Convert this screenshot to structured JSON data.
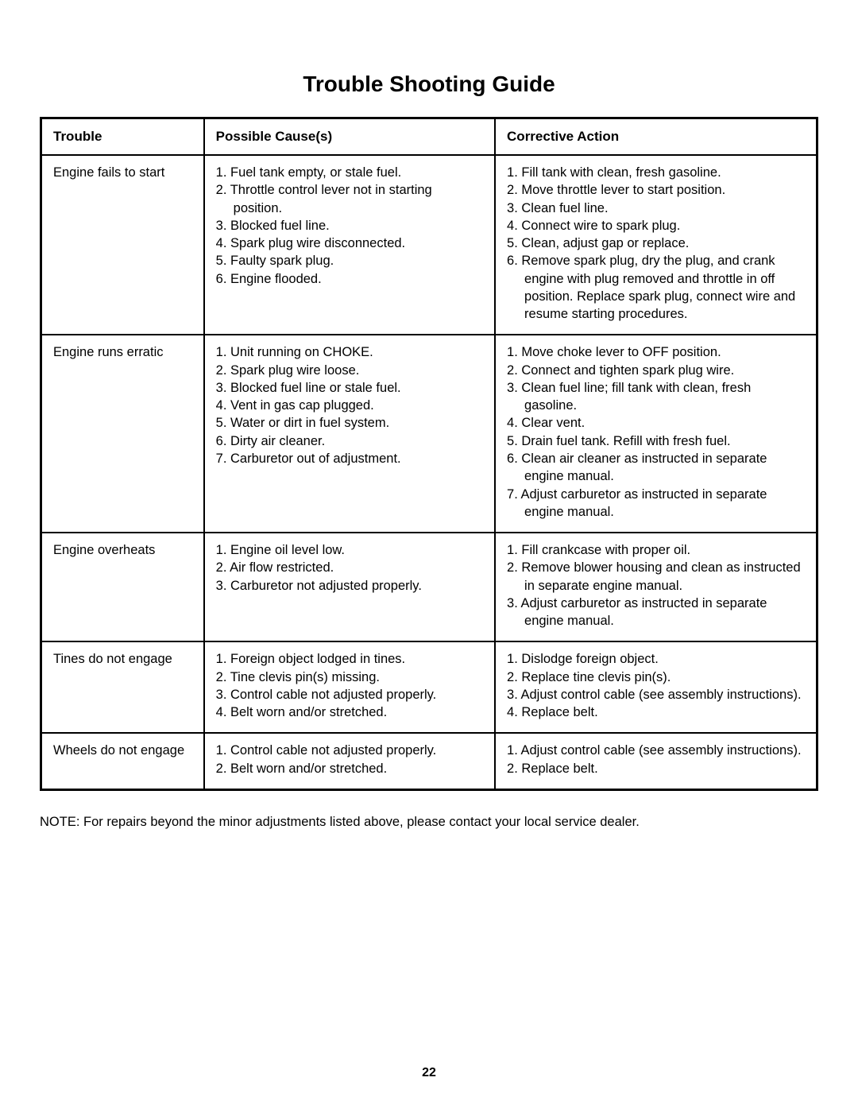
{
  "title": "Trouble Shooting Guide",
  "headers": {
    "trouble": "Trouble",
    "cause": "Possible Cause(s)",
    "action": "Corrective Action"
  },
  "rows": [
    {
      "trouble": "Engine fails to start",
      "causes": [
        "1.  Fuel tank empty, or stale fuel.",
        "2.  Throttle control lever not in starting position.",
        "3.  Blocked fuel line.",
        "4.  Spark plug wire disconnected.",
        "5.  Faulty spark plug.",
        "6.  Engine flooded."
      ],
      "actions": [
        "1.  Fill tank with clean, fresh gasoline.",
        "2.  Move throttle lever to start position.",
        "3.  Clean fuel line.",
        "4.  Connect wire to spark plug.",
        "5.  Clean, adjust gap or replace.",
        "6.  Remove spark plug, dry the plug, and crank engine with plug removed and throttle in off position. Replace spark plug, connect wire and resume starting procedures."
      ]
    },
    {
      "trouble": "Engine runs erratic",
      "causes": [
        "1.  Unit running on CHOKE.",
        "2.  Spark plug wire loose.",
        "3.  Blocked fuel line or stale fuel.",
        "4.  Vent in gas cap plugged.",
        "5.  Water or dirt in fuel system.",
        "6.  Dirty air cleaner.",
        "7.  Carburetor out of adjustment."
      ],
      "actions": [
        "1.  Move choke lever to OFF position.",
        "2.  Connect and tighten spark plug wire.",
        "3.  Clean fuel line; fill tank with clean, fresh gasoline.",
        "4.  Clear vent.",
        "5.  Drain fuel tank. Refill with fresh fuel.",
        "6.  Clean air cleaner as instructed in separate engine manual.",
        "7.  Adjust carburetor as instructed in separate engine manual."
      ]
    },
    {
      "trouble": "Engine overheats",
      "causes": [
        "1.  Engine oil level low.",
        "2.  Air flow restricted.",
        "3.  Carburetor not adjusted properly."
      ],
      "actions": [
        "1.  Fill crankcase with proper oil.",
        "2.  Remove blower housing and clean as instructed in separate engine manual.",
        "3.  Adjust carburetor as instructed in separate engine manual."
      ]
    },
    {
      "trouble": "Tines do not engage",
      "causes": [
        "1.  Foreign object lodged in tines.",
        "2.  Tine clevis pin(s) missing.",
        "3.  Control cable not adjusted properly.",
        "4.  Belt worn and/or stretched."
      ],
      "actions": [
        "1.  Dislodge foreign object.",
        "2.  Replace tine clevis pin(s).",
        "3.  Adjust control cable (see assembly instructions).",
        "4.  Replace belt."
      ]
    },
    {
      "trouble": "Wheels do not engage",
      "causes": [
        "1.  Control cable not adjusted properly.",
        "2.  Belt worn and/or stretched."
      ],
      "actions": [
        "1.  Adjust control cable (see assembly instructions).",
        "2.  Replace belt."
      ]
    }
  ],
  "note": "NOTE: For repairs beyond the minor adjustments listed above, please contact your local service dealer.",
  "page_number": "22",
  "styles": {
    "font_family": "Arial, Helvetica, sans-serif",
    "title_fontsize": 28,
    "body_fontsize": 16.5,
    "border_color": "#000000",
    "background_color": "#ffffff"
  }
}
